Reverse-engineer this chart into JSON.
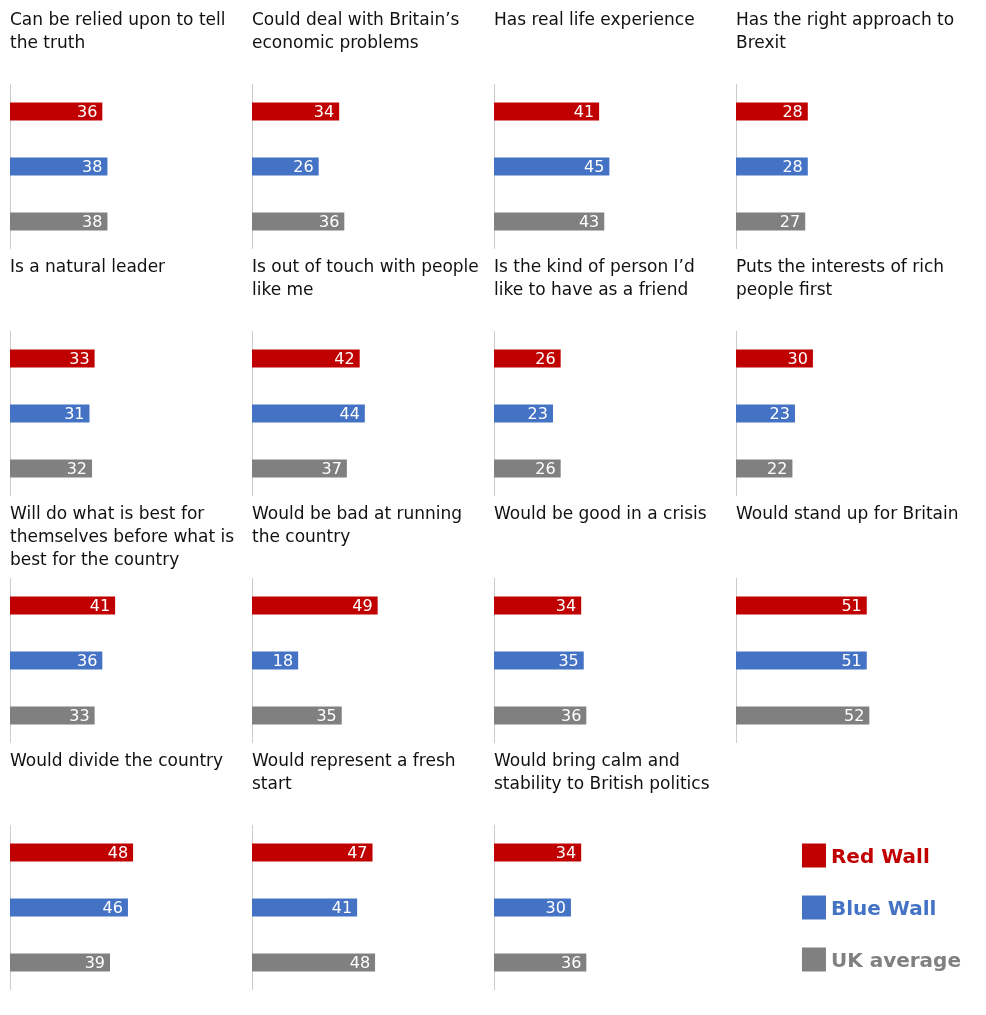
{
  "chart_data": [
    {
      "type": "bar",
      "orientation": "horizontal",
      "stacked": true,
      "title": "Can be relied upon to tell the truth",
      "categories": [
        null,
        null,
        null
      ],
      "data_labels": true,
      "series": [
        {
          "color": "#c00000",
          "values": [
            36,
            null,
            null
          ]
        },
        {
          "color": "#4472c4",
          "values": [
            null,
            38,
            null
          ]
        },
        {
          "color": "#808080",
          "values": [
            null,
            null,
            38
          ]
        }
      ]
    },
    {
      "type": "bar",
      "orientation": "horizontal",
      "stacked": true,
      "title": "Could deal with Britain’s economic problems",
      "categories": [
        null,
        null,
        null
      ],
      "data_labels": true,
      "series": [
        {
          "color": "#c00000",
          "values": [
            34,
            null,
            null
          ]
        },
        {
          "color": "#4472c4",
          "values": [
            null,
            26,
            null
          ]
        },
        {
          "color": "#808080",
          "values": [
            null,
            null,
            36
          ]
        }
      ]
    },
    {
      "type": "bar",
      "orientation": "horizontal",
      "stacked": true,
      "title": "Has real life experience",
      "categories": [
        null,
        null,
        null
      ],
      "data_labels": true,
      "series": [
        {
          "color": "#c00000",
          "values": [
            41,
            null,
            null
          ]
        },
        {
          "color": "#4472c4",
          "values": [
            null,
            45,
            null
          ]
        },
        {
          "color": "#808080",
          "values": [
            null,
            null,
            43
          ]
        }
      ]
    },
    {
      "type": "bar",
      "orientation": "horizontal",
      "stacked": true,
      "title": "Has the right approach to Brexit",
      "categories": [
        null,
        null,
        null
      ],
      "data_labels": true,
      "series": [
        {
          "color": "#c00000",
          "values": [
            28,
            null,
            null
          ]
        },
        {
          "color": "#4472c4",
          "values": [
            null,
            28,
            null
          ]
        },
        {
          "color": "#808080",
          "values": [
            null,
            null,
            27
          ]
        }
      ]
    },
    {
      "type": "bar",
      "orientation": "horizontal",
      "stacked": true,
      "title": "Is a natural leader",
      "categories": [
        null,
        null,
        null
      ],
      "data_labels": true,
      "series": [
        {
          "color": "#c00000",
          "values": [
            33,
            null,
            null
          ]
        },
        {
          "color": "#4472c4",
          "values": [
            null,
            31,
            null
          ]
        },
        {
          "color": "#808080",
          "values": [
            null,
            null,
            32
          ]
        }
      ]
    },
    {
      "type": "bar",
      "orientation": "horizontal",
      "stacked": true,
      "title": "Is out of touch with people like me",
      "categories": [
        null,
        null,
        null
      ],
      "data_labels": true,
      "series": [
        {
          "color": "#c00000",
          "values": [
            42,
            null,
            null
          ]
        },
        {
          "color": "#4472c4",
          "values": [
            null,
            44,
            null
          ]
        },
        {
          "color": "#808080",
          "values": [
            null,
            null,
            37
          ]
        }
      ]
    },
    {
      "type": "bar",
      "orientation": "horizontal",
      "stacked": true,
      "title": "Is the kind of person I’d like to have as a friend",
      "categories": [
        null,
        null,
        null
      ],
      "data_labels": true,
      "series": [
        {
          "color": "#c00000",
          "values": [
            26,
            null,
            null
          ]
        },
        {
          "color": "#4472c4",
          "values": [
            null,
            23,
            null
          ]
        },
        {
          "color": "#808080",
          "values": [
            null,
            null,
            26
          ]
        }
      ]
    },
    {
      "type": "bar",
      "orientation": "horizontal",
      "stacked": true,
      "title": "Puts the interests of rich people first",
      "categories": [
        null,
        null,
        null
      ],
      "data_labels": true,
      "series": [
        {
          "color": "#c00000",
          "values": [
            30,
            null,
            null
          ]
        },
        {
          "color": "#4472c4",
          "values": [
            null,
            23,
            null
          ]
        },
        {
          "color": "#808080",
          "values": [
            null,
            null,
            22
          ]
        }
      ]
    },
    {
      "type": "bar",
      "orientation": "horizontal",
      "stacked": true,
      "title": "Will do what is best for themselves before what is best for the country",
      "categories": [
        null,
        null,
        null
      ],
      "data_labels": true,
      "series": [
        {
          "color": "#c00000",
          "values": [
            41,
            null,
            null
          ]
        },
        {
          "color": "#4472c4",
          "values": [
            null,
            36,
            null
          ]
        },
        {
          "color": "#808080",
          "values": [
            null,
            null,
            33
          ]
        }
      ]
    },
    {
      "type": "bar",
      "orientation": "horizontal",
      "stacked": true,
      "title": "Would be bad at running the country",
      "categories": [
        null,
        null,
        null
      ],
      "data_labels": true,
      "series": [
        {
          "color": "#c00000",
          "values": [
            49,
            null,
            null
          ]
        },
        {
          "color": "#4472c4",
          "values": [
            null,
            18,
            null
          ]
        },
        {
          "color": "#808080",
          "values": [
            null,
            null,
            35
          ]
        }
      ]
    },
    {
      "type": "bar",
      "orientation": "horizontal",
      "stacked": true,
      "title": "Would be good in a crisis",
      "categories": [
        null,
        null,
        null
      ],
      "data_labels": true,
      "series": [
        {
          "color": "#c00000",
          "values": [
            34,
            null,
            null
          ]
        },
        {
          "color": "#4472c4",
          "values": [
            null,
            35,
            null
          ]
        },
        {
          "color": "#808080",
          "values": [
            null,
            null,
            36
          ]
        }
      ]
    },
    {
      "type": "bar",
      "orientation": "horizontal",
      "stacked": true,
      "title": "Would stand up for Britain",
      "categories": [
        null,
        null,
        null
      ],
      "data_labels": true,
      "series": [
        {
          "color": "#c00000",
          "values": [
            51,
            null,
            null
          ]
        },
        {
          "color": "#4472c4",
          "values": [
            null,
            51,
            null
          ]
        },
        {
          "color": "#808080",
          "values": [
            null,
            null,
            52
          ]
        }
      ]
    },
    {
      "type": "bar",
      "orientation": "horizontal",
      "stacked": true,
      "title": "Would divide the country",
      "categories": [
        null,
        null,
        null
      ],
      "data_labels": true,
      "series": [
        {
          "color": "#c00000",
          "values": [
            48,
            null,
            null
          ]
        },
        {
          "color": "#4472c4",
          "values": [
            null,
            46,
            null
          ]
        },
        {
          "color": "#808080",
          "values": [
            null,
            null,
            39
          ]
        }
      ]
    },
    {
      "type": "bar",
      "orientation": "horizontal",
      "stacked": true,
      "title": "Would represent a fresh start",
      "categories": [
        null,
        null,
        null
      ],
      "data_labels": true,
      "series": [
        {
          "color": "#c00000",
          "values": [
            47,
            null,
            null
          ]
        },
        {
          "color": "#4472c4",
          "values": [
            null,
            41,
            null
          ]
        },
        {
          "color": "#808080",
          "values": [
            null,
            null,
            48
          ]
        }
      ]
    },
    {
      "type": "bar",
      "orientation": "horizontal",
      "stacked": true,
      "title": "Would bring calm and stability to British politics",
      "categories": [
        null,
        null,
        null
      ],
      "data_labels": true,
      "legend": "right",
      "series": [
        {
          "name": "Red Wall",
          "color": "#c00000",
          "values": [
            34,
            null,
            null
          ]
        },
        {
          "name": "Blue Wall",
          "color": "#4472c4",
          "values": [
            null,
            30,
            null
          ]
        },
        {
          "name": "UK average",
          "color": "#808080",
          "values": [
            null,
            null,
            36
          ]
        }
      ]
    }
  ]
}
